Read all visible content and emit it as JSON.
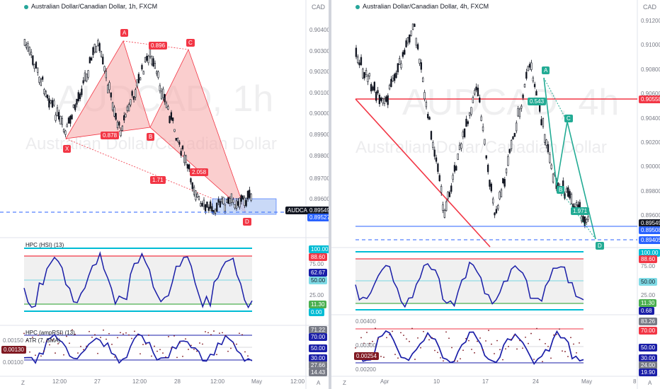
{
  "left": {
    "title": "Australian Dollar/Canadian Dollar, 1h, FXCM",
    "currency": "CAD",
    "watermark_symbol": "AUDCAD, 1h",
    "watermark_name": "Australian Dollar/Canadian Dollar",
    "price_ticks": [
      "0.90400",
      "0.90300",
      "0.90200",
      "0.90100",
      "0.90000",
      "0.89900",
      "0.89800",
      "0.89700",
      "0.89600"
    ],
    "symbol_tag": "AUDCAD",
    "price_current": "0.89549",
    "price_line": "0.89527",
    "pattern_points": [
      "X",
      "A",
      "B",
      "C",
      "D"
    ],
    "ratios": {
      "xa_b": "0.878",
      "ab_c": "0.896",
      "bc_d": "2.058",
      "xa_d": "1.71"
    },
    "hsi": {
      "title": "HPC (HSI) (13)",
      "labels": [
        "100.00",
        "88.60",
        "75.00",
        "62.67",
        "50.00",
        "25.00",
        "11.30",
        "0.00"
      ]
    },
    "amprsi": {
      "title": "HPC (ampRSI) (13)",
      "atr_title": "ATR (7, SMA)",
      "atr_value": "0.00130",
      "atr_tick": "0.00150",
      "atr_tick2": "0.00100",
      "labels": [
        "71.22",
        "70.00",
        "50.00",
        "30.00",
        "27.66",
        "14.43"
      ]
    },
    "x_labels": [
      "12:00",
      "27",
      "12:00",
      "28",
      "12:00",
      "May",
      "12:00"
    ],
    "corner_left": "Z",
    "corner_right": "A"
  },
  "right": {
    "title": "Australian Dollar/Canadian Dollar, 4h, FXCM",
    "currency": "CAD",
    "watermark_symbol": "AUDCAD, 4h",
    "watermark_name": "Australian Dollar/Canadian Dollar",
    "price_ticks": [
      "0.91200",
      "0.91000",
      "0.90800",
      "0.90600",
      "0.90400",
      "0.90200",
      "0.90000",
      "0.89800",
      "0.89600"
    ],
    "price_line_red": "0.90558",
    "price_current": "0.89549",
    "price_line": "0.89508",
    "price_target": "0.89405",
    "pattern_points": [
      "A",
      "B",
      "C",
      "D"
    ],
    "ratios": {
      "ab": "0.543",
      "cd": "1.971"
    },
    "hsi": {
      "labels": [
        "100.00",
        "88.60",
        "75.00",
        "50.00",
        "25.00",
        "11.30",
        "0.68"
      ]
    },
    "amprsi": {
      "labels": [
        "83.26",
        "70.00",
        "50.00",
        "30.00",
        "24.00",
        "19.90"
      ],
      "atr_ticks": [
        "0.00400",
        "0.00300",
        "0.00200"
      ],
      "atr_value": "0.00254"
    },
    "x_labels": [
      "Apr",
      "10",
      "17",
      "24",
      "May",
      "8"
    ],
    "corner_left": "Z",
    "corner_right": "A"
  },
  "colors": {
    "bull": "#131722",
    "red_line": "#f23645",
    "green_line": "#22ab94",
    "blue": "#2962ff",
    "cyan": "#00bcd4",
    "navy": "#1a1ea8",
    "harmonic_fill": "#f6a6a6",
    "box_fill": "#bbd0f5"
  }
}
